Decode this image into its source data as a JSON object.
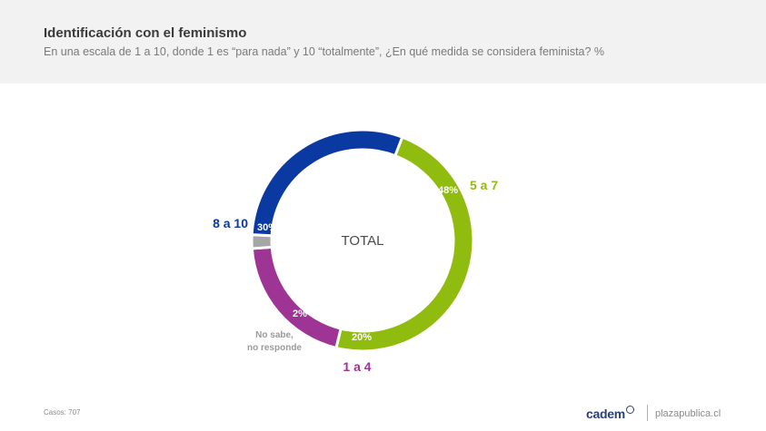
{
  "header": {
    "title": "Identificación con el feminismo",
    "subtitle": "En una escala de 1 a 10, donde 1 es “para nada” y 10 “totalmente”, ¿En qué medida se considera feminista? %"
  },
  "chart_data": {
    "type": "pie",
    "variant": "donut",
    "center_label": "TOTAL",
    "slices": [
      {
        "label": "5 a 7",
        "value": 48,
        "display": "48%",
        "color": "#8fbc0f"
      },
      {
        "label": "1 a 4",
        "value": 20,
        "display": "20%",
        "color": "#9e3494"
      },
      {
        "label": "No sabe, no responde",
        "label_lines": [
          "No sabe,",
          "no responde"
        ],
        "value": 2,
        "display": "2%",
        "color": "#a6a6a6"
      },
      {
        "label": "8 a 10",
        "value": 30,
        "display": "30%",
        "color": "#0a39a2"
      }
    ]
  },
  "footer": {
    "cases": "Casos: 707",
    "brand": "cadem",
    "site": "plazapublica.cl"
  }
}
